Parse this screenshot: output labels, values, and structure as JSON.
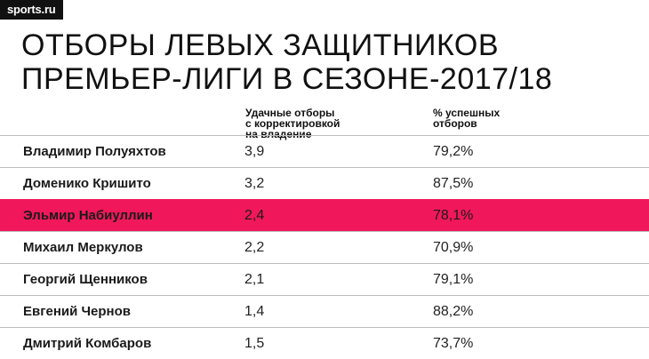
{
  "logo": {
    "text": "sports.ru"
  },
  "title": {
    "line1": "ОТБОРЫ ЛЕВЫХ ЗАЩИТНИКОВ",
    "line2": "ПРЕМЬЕР-ЛИГИ В СЕЗОНЕ-2017/18"
  },
  "columns": {
    "col1": [
      "Удачные отборы",
      "с корректировкой",
      "на владение"
    ],
    "col2": [
      "% успешных",
      "отборов"
    ]
  },
  "colors": {
    "highlight": "#f0185a",
    "divider": "#bdbdbd"
  },
  "chart_data": {
    "type": "table",
    "title": "ОТБОРЫ ЛЕВЫХ ЗАЩИТНИКОВ ПРЕМЬЕР-ЛИГИ В СЕЗОНЕ-2017/18",
    "headers": [
      "",
      "Удачные отборы с корректировкой на владение",
      "% успешных отборов"
    ],
    "rows": [
      {
        "name": "Владимир Полуяхтов",
        "tackles": "3,9",
        "pct": "79,2%",
        "highlight": false
      },
      {
        "name": "Доменико Кришито",
        "tackles": "3,2",
        "pct": "87,5%",
        "highlight": false
      },
      {
        "name": "Эльмир Набиуллин",
        "tackles": "2,4",
        "pct": "78,1%",
        "highlight": true
      },
      {
        "name": "Михаил Меркулов",
        "tackles": "2,2",
        "pct": "70,9%",
        "highlight": false
      },
      {
        "name": "Георгий Щенников",
        "tackles": "2,1",
        "pct": "79,1%",
        "highlight": false
      },
      {
        "name": "Евгений Чернов",
        "tackles": "1,4",
        "pct": "88,2%",
        "highlight": false
      },
      {
        "name": "Дмитрий Комбаров",
        "tackles": "1,5",
        "pct": "73,7%",
        "highlight": false
      }
    ]
  }
}
